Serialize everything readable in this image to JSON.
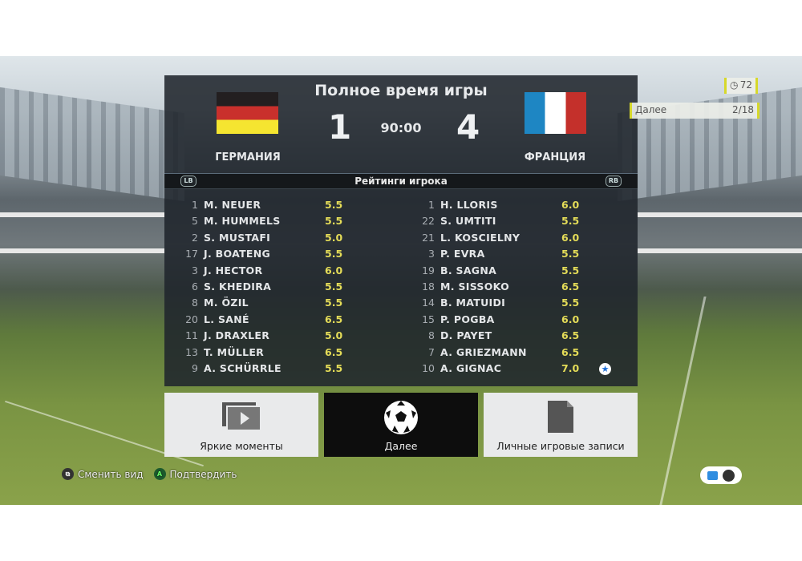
{
  "header": {
    "title": "Полное время игры",
    "clock": "90:00"
  },
  "home": {
    "team": "ГЕРМАНИЯ",
    "score": "1",
    "flag_colors": [
      "#231f20",
      "#c9302c",
      "#f5e530"
    ]
  },
  "away": {
    "team": "ФРАНЦИЯ",
    "score": "4",
    "flag_colors": [
      "#1e86c3",
      "#ffffff",
      "#c4302b"
    ]
  },
  "ratings": {
    "label": "Рейтинги игрока",
    "left_bumper": "LB",
    "right_bumper": "RB",
    "home_players": [
      {
        "num": "1",
        "name": "M. NEUER",
        "rating": "5.5"
      },
      {
        "num": "5",
        "name": "M. HUMMELS",
        "rating": "5.5"
      },
      {
        "num": "2",
        "name": "S. MUSTAFI",
        "rating": "5.0"
      },
      {
        "num": "17",
        "name": "J. BOATENG",
        "rating": "5.5"
      },
      {
        "num": "3",
        "name": "J. HECTOR",
        "rating": "6.0"
      },
      {
        "num": "6",
        "name": "S. KHEDIRA",
        "rating": "5.5"
      },
      {
        "num": "8",
        "name": "M. ÖZIL",
        "rating": "5.5"
      },
      {
        "num": "20",
        "name": "L. SANÉ",
        "rating": "6.5"
      },
      {
        "num": "11",
        "name": "J. DRAXLER",
        "rating": "5.0"
      },
      {
        "num": "13",
        "name": "T. MÜLLER",
        "rating": "6.5"
      },
      {
        "num": "9",
        "name": "A. SCHÜRRLE",
        "rating": "5.5"
      }
    ],
    "away_players": [
      {
        "num": "1",
        "name": "H. LLORIS",
        "rating": "6.0"
      },
      {
        "num": "22",
        "name": "S. UMTITI",
        "rating": "5.5"
      },
      {
        "num": "21",
        "name": "L. KOSCIELNY",
        "rating": "6.0"
      },
      {
        "num": "3",
        "name": "P. EVRA",
        "rating": "5.5"
      },
      {
        "num": "19",
        "name": "B. SAGNA",
        "rating": "5.5"
      },
      {
        "num": "18",
        "name": "M. SISSOKO",
        "rating": "6.5"
      },
      {
        "num": "14",
        "name": "B. MATUIDI",
        "rating": "5.5"
      },
      {
        "num": "15",
        "name": "P. POGBA",
        "rating": "6.0"
      },
      {
        "num": "8",
        "name": "D. PAYET",
        "rating": "6.5"
      },
      {
        "num": "7",
        "name": "A. GRIEZMANN",
        "rating": "6.5"
      },
      {
        "num": "10",
        "name": "A. GIGNAC",
        "rating": "7.0",
        "star": true
      }
    ]
  },
  "buttons": {
    "highlights": "Яркие моменты",
    "next": "Далее",
    "records": "Личные игровые записи"
  },
  "hints": {
    "change_view": "Сменить вид",
    "confirm": "Подтвердить",
    "confirm_key": "A"
  },
  "timer": {
    "value": "72"
  },
  "next_badge": {
    "label": "Далее",
    "count": "2/18"
  }
}
